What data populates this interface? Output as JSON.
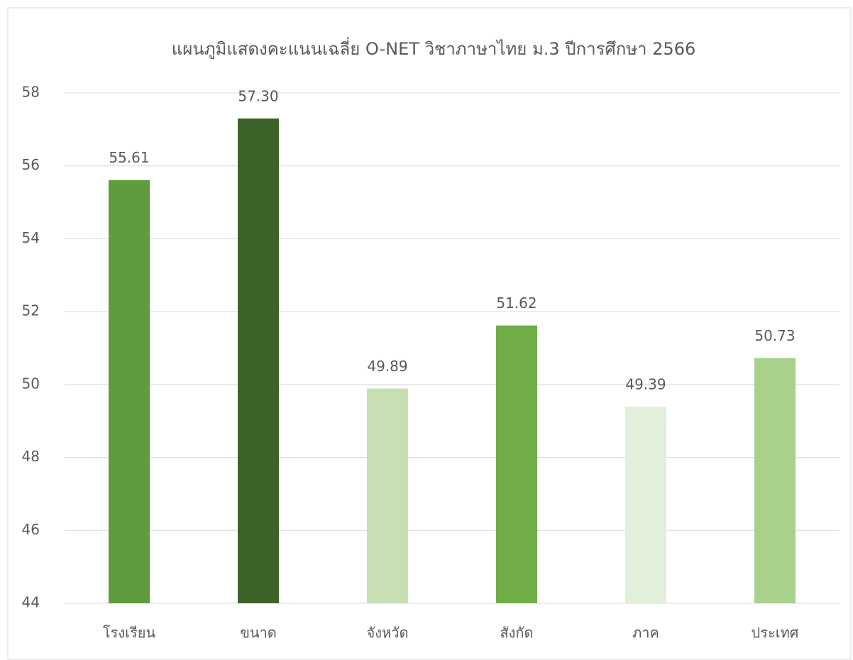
{
  "chart_data": {
    "type": "bar",
    "title": "แผนภูมิแสดงคะแนนเฉลี่ย O-NET วิชาภาษาไทย ม.3 ปีการศึกษา 2566",
    "categories": [
      "โรงเรียน",
      "ขนาด",
      "จังหวัด",
      "สังกัด",
      "ภาค",
      "ประเทศ"
    ],
    "values": [
      55.61,
      57.3,
      49.89,
      51.62,
      49.39,
      50.73
    ],
    "value_labels": [
      "55.61",
      "57.30",
      "49.89",
      "51.62",
      "49.39",
      "50.73"
    ],
    "colors": [
      "#5f9b3f",
      "#3e6329",
      "#c6e0b4",
      "#70ad47",
      "#e2efda",
      "#a9d18e"
    ],
    "ylim": [
      44,
      58
    ],
    "yticks": [
      44,
      46,
      48,
      50,
      52,
      54,
      56,
      58
    ],
    "grid": true
  }
}
